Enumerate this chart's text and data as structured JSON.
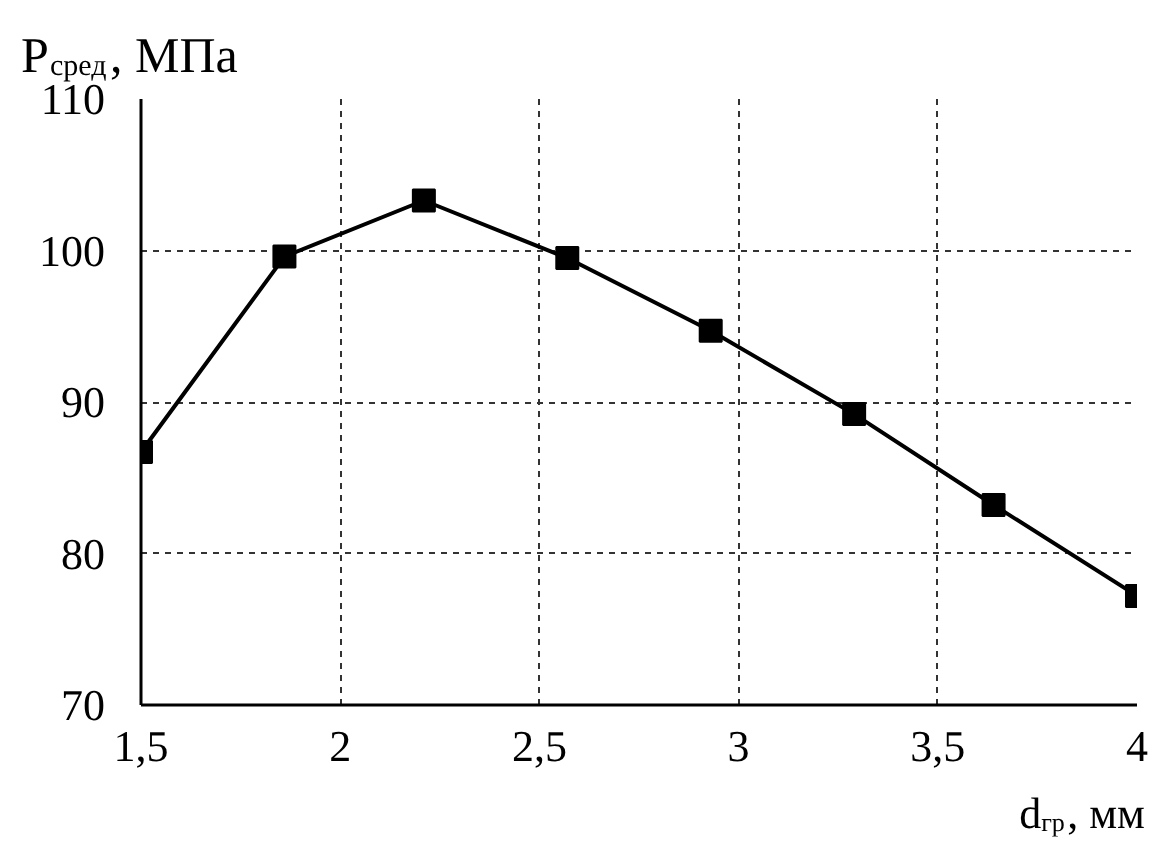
{
  "chart_data": {
    "type": "line",
    "xlabel": "d$_{гр}$, мм",
    "ylabel": "P$_{сред}$, МПа",
    "x": [
      1.5,
      1.86,
      2.21,
      2.57,
      2.93,
      3.29,
      3.64,
      4
    ],
    "series": [
      {
        "color": "#000000",
        "values": [
          86.7,
          99.6,
          103.3,
          99.5,
          94.7,
          89.2,
          83.2,
          77.2
        ]
      }
    ],
    "xlim": [
      1.5,
      4
    ],
    "ylim": [
      70,
      110
    ],
    "xticks": [
      {
        "value": 1.5,
        "label": "1,5"
      },
      2,
      {
        "value": 2.5,
        "label": "2,5"
      },
      3,
      {
        "value": 3.5,
        "label": "3,5"
      },
      4
    ],
    "yticks": [
      70,
      80,
      90,
      100,
      110
    ],
    "grid": true,
    "marker": "square",
    "line_style": "solid"
  }
}
